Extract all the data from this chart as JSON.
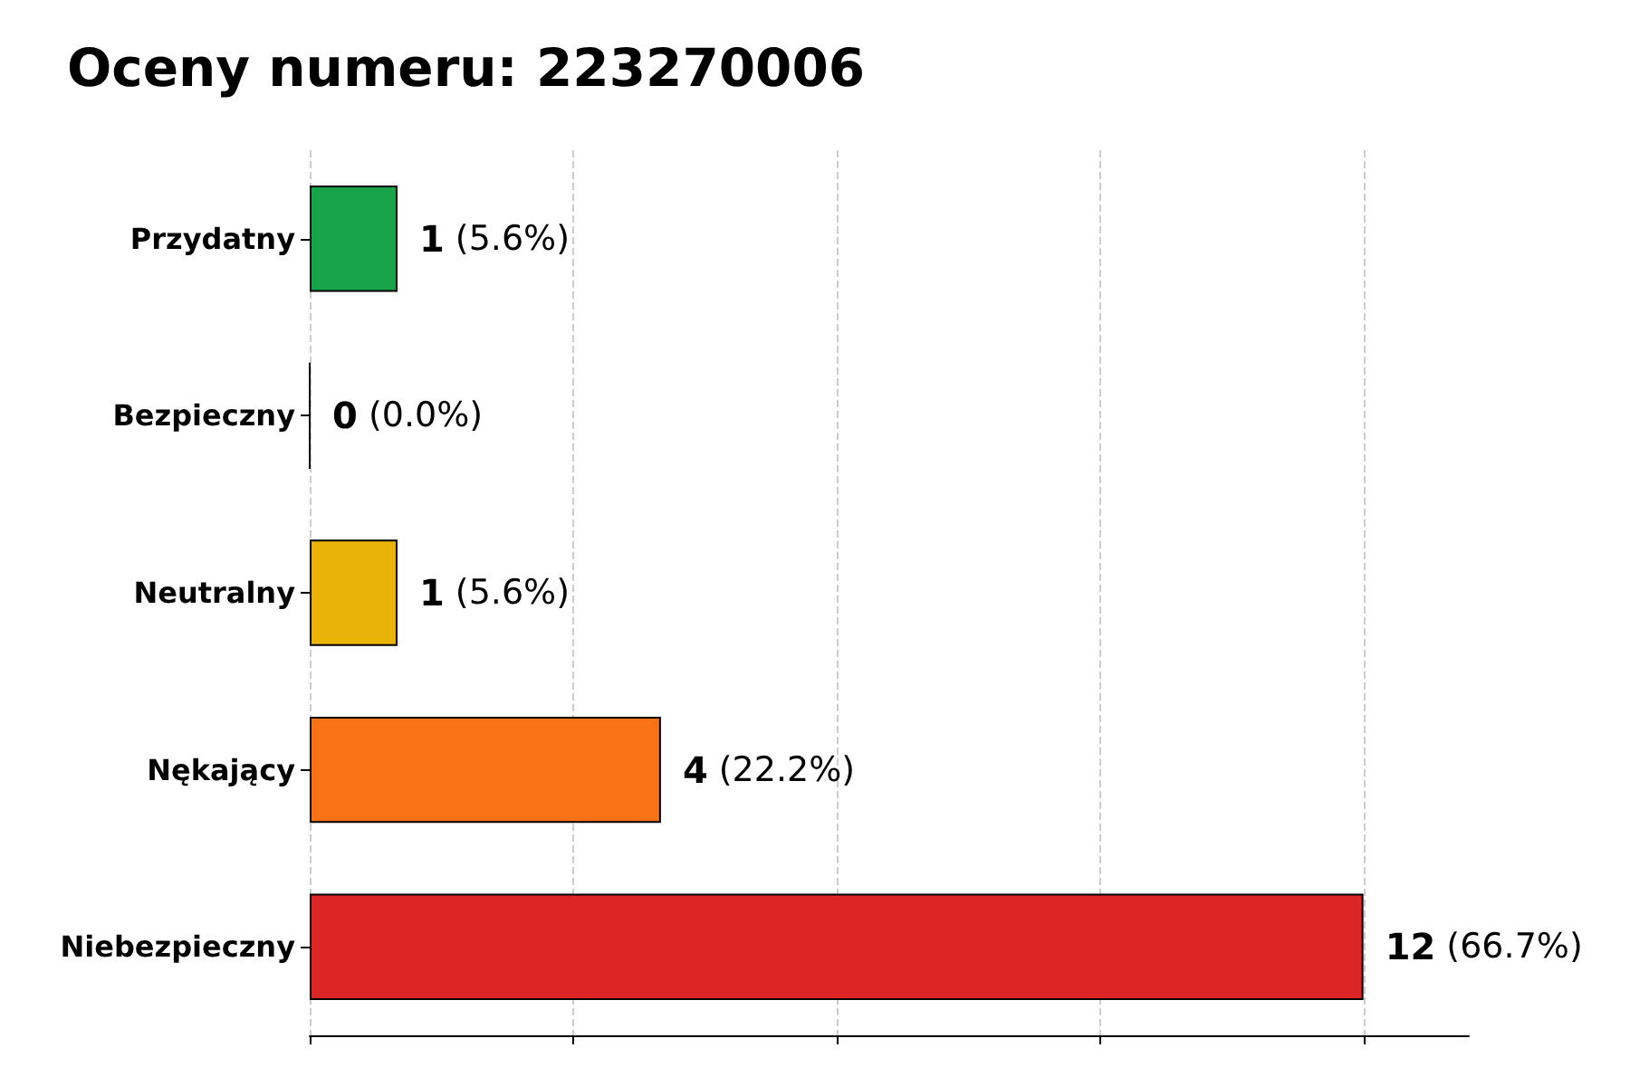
{
  "chart_data": {
    "type": "bar",
    "orientation": "horizontal",
    "title": "Oceny numeru: 223270006",
    "categories": [
      "Przydatny",
      "Bezpieczny",
      "Neutralny",
      "Nękający",
      "Niebezpieczny"
    ],
    "values": [
      1,
      0,
      1,
      4,
      12
    ],
    "colors": [
      "#16a34a",
      "#000000",
      "#eab308",
      "#f97316",
      "#dc2626"
    ],
    "value_labels": [
      "1 (5.6%)",
      "0 (0.0%)",
      "1 (5.6%)",
      "4 (22.2%)",
      "12 (66.7%)"
    ],
    "xlim": [
      0,
      13.2
    ],
    "xticks": [
      {
        "value": 0,
        "label": null
      },
      {
        "value": 3,
        "label": null
      },
      {
        "value": 6,
        "label": null
      },
      {
        "value": 9,
        "label": null
      },
      {
        "value": 12,
        "label": null
      }
    ],
    "tick_labels": "y",
    "grid": "x"
  }
}
